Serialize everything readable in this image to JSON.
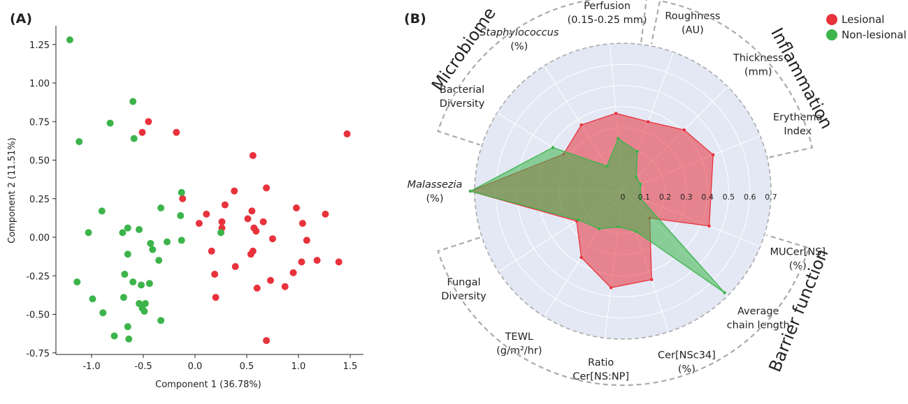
{
  "colors": {
    "lesional": "#e8323c",
    "non_lesional": "#3cb44b",
    "radar_bg": "#e3e8f4"
  },
  "panel_a": {
    "label": "(A)"
  },
  "panel_b": {
    "label": "(B)"
  },
  "chart_data": [
    {
      "type": "scatter",
      "xlabel": "Component 1 (36.78%)",
      "ylabel": "Component 2 (11.51%)",
      "xlim": [
        -1.35,
        1.6
      ],
      "ylim": [
        -0.75,
        1.4
      ],
      "xticks": [
        "-1.0",
        "-0.5",
        "0.0",
        "0.5",
        "1.0",
        "1.5"
      ],
      "xtick_values": [
        -1.0,
        -0.5,
        0.0,
        0.5,
        1.0,
        1.5
      ],
      "yticks": [
        "1.25",
        "1.00",
        "0.75",
        "0.50",
        "0.25",
        "0.00",
        "-0.25",
        "-0.50",
        "-0.75"
      ],
      "ytick_values": [
        1.25,
        1.0,
        0.75,
        0.5,
        0.25,
        0.0,
        -0.25,
        -0.5,
        -0.75
      ],
      "series": [
        {
          "name": "Lesional",
          "points": [
            [
              -0.45,
              0.75
            ],
            [
              -0.51,
              0.68
            ],
            [
              -0.18,
              0.68
            ],
            [
              1.47,
              0.67
            ],
            [
              0.56,
              0.53
            ],
            [
              0.69,
              0.32
            ],
            [
              0.38,
              0.3
            ],
            [
              -0.12,
              0.25
            ],
            [
              0.29,
              0.21
            ],
            [
              0.55,
              0.17
            ],
            [
              0.98,
              0.19
            ],
            [
              0.11,
              0.15
            ],
            [
              0.51,
              0.12
            ],
            [
              1.26,
              0.15
            ],
            [
              0.26,
              0.1
            ],
            [
              0.66,
              0.1
            ],
            [
              0.04,
              0.09
            ],
            [
              1.04,
              0.09
            ],
            [
              0.26,
              0.06
            ],
            [
              0.57,
              0.06
            ],
            [
              0.59,
              0.04
            ],
            [
              0.75,
              -0.01
            ],
            [
              1.08,
              -0.02
            ],
            [
              0.16,
              -0.09
            ],
            [
              0.54,
              -0.11
            ],
            [
              0.56,
              -0.09
            ],
            [
              1.03,
              -0.16
            ],
            [
              1.18,
              -0.15
            ],
            [
              1.39,
              -0.16
            ],
            [
              0.39,
              -0.19
            ],
            [
              0.95,
              -0.23
            ],
            [
              0.19,
              -0.24
            ],
            [
              0.73,
              -0.28
            ],
            [
              0.87,
              -0.32
            ],
            [
              0.6,
              -0.33
            ],
            [
              0.2,
              -0.39
            ],
            [
              0.69,
              -0.67
            ]
          ]
        },
        {
          "name": "Non-lesional",
          "points": [
            [
              -1.21,
              1.28
            ],
            [
              -0.6,
              0.88
            ],
            [
              -0.82,
              0.74
            ],
            [
              -1.12,
              0.62
            ],
            [
              -0.59,
              0.64
            ],
            [
              -0.13,
              0.29
            ],
            [
              -0.33,
              0.19
            ],
            [
              -0.9,
              0.17
            ],
            [
              -0.14,
              0.14
            ],
            [
              -0.65,
              0.06
            ],
            [
              -0.54,
              0.05
            ],
            [
              -1.03,
              0.03
            ],
            [
              -0.7,
              0.03
            ],
            [
              -0.13,
              -0.02
            ],
            [
              -0.27,
              -0.03
            ],
            [
              -0.43,
              -0.04
            ],
            [
              0.25,
              0.03
            ],
            [
              -0.41,
              -0.08
            ],
            [
              -0.65,
              -0.11
            ],
            [
              -0.35,
              -0.15
            ],
            [
              -0.68,
              -0.24
            ],
            [
              -1.14,
              -0.29
            ],
            [
              -0.6,
              -0.29
            ],
            [
              -0.52,
              -0.31
            ],
            [
              -0.44,
              -0.3
            ],
            [
              -0.99,
              -0.4
            ],
            [
              -0.69,
              -0.39
            ],
            [
              -0.54,
              -0.43
            ],
            [
              -0.48,
              -0.43
            ],
            [
              -0.51,
              -0.46
            ],
            [
              -0.49,
              -0.48
            ],
            [
              -0.89,
              -0.49
            ],
            [
              -0.33,
              -0.54
            ],
            [
              -0.65,
              -0.58
            ],
            [
              -0.78,
              -0.64
            ],
            [
              -0.64,
              -0.66
            ]
          ]
        }
      ]
    },
    {
      "type": "radar",
      "rmax": 0.7,
      "radial_ticks": [
        "0",
        "0.1",
        "0.2",
        "0.3",
        "0.4",
        "0.5",
        "0.6",
        "0.7"
      ],
      "axes": [
        {
          "label": "Erythema\nIndex",
          "angle": 22
        },
        {
          "label": "Thickness\n(mm)",
          "angle": 45
        },
        {
          "label": "Roughness\n(AU)",
          "angle": 70
        },
        {
          "label": "Perfusion\n(0.15-0.25 mm)",
          "angle": 95
        },
        {
          "label": "Staphylococcus\n(%)",
          "angle": 122,
          "italic": true
        },
        {
          "label": "Bacterial\nDiversity",
          "angle": 148
        },
        {
          "label": "Malassezia\n(%)",
          "angle": 180,
          "italic": true
        },
        {
          "label": "Fungal\nDiversity",
          "angle": 213
        },
        {
          "label": "TEWL\n(g/m²/hr)",
          "angle": 238
        },
        {
          "label": "Ratio\nCer[NS:NP]",
          "angle": 263
        },
        {
          "label": "Cer[NSc34]\n(%)",
          "angle": 288
        },
        {
          "label": "Average\nchain length",
          "angle": 315
        },
        {
          "label": "MUCer[NS]\n(%)",
          "angle": 338
        }
      ],
      "series": [
        {
          "name": "Lesional",
          "values": [
            0.46,
            0.41,
            0.35,
            0.37,
            0.37,
            0.33,
            0.72,
            0.26,
            0.37,
            0.46,
            0.44,
            0.18,
            0.44
          ]
        },
        {
          "name": "Non-lesional",
          "values": [
            0.09,
            0.09,
            0.2,
            0.25,
            0.14,
            0.39,
            0.72,
            0.25,
            0.21,
            0.17,
            0.2,
            0.68,
            0.09
          ]
        }
      ],
      "groups": [
        {
          "label": "Inflammation",
          "start": 13,
          "end": 79
        },
        {
          "label": "Microbiome",
          "start": 83,
          "end": 162
        },
        {
          "label": "Barrier function",
          "start": 198,
          "end": 343
        }
      ],
      "legend": {
        "position": "top-right",
        "entries": [
          "Lesional",
          "Non-lesional"
        ]
      }
    }
  ]
}
